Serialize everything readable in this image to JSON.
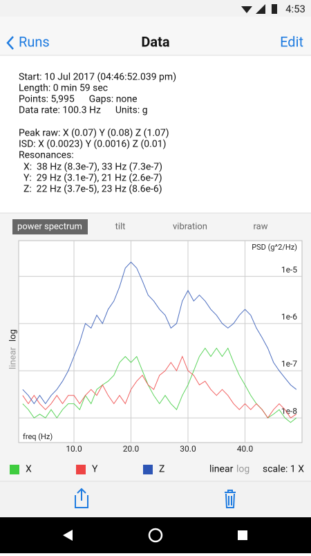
{
  "status": {
    "time": "4:53"
  },
  "nav": {
    "back": "Runs",
    "title": "Data",
    "edit": "Edit"
  },
  "info": {
    "lines": [
      "Start: 10 Jul 2017 (04:46:52.039 pm)",
      "Length: 0 min 59 sec",
      "Points: 5,995      Gaps: none",
      "Data rate: 100.3 Hz      Units: g",
      "Peak raw: X (0.07) Y (0.08) Z (1.07)",
      "ISD: X (0.0023) Y (0.0016) Z (0.01)",
      "Resonances:",
      "  X:  38 Hz (8.3e-7), 33 Hz (7.3e-7)",
      "  Y:  29 Hz (3.1e-7), 21 Hz (2.6e-7)",
      "  Z:  22 Hz (3.7e-5), 23 Hz (8.6e-6)"
    ]
  },
  "tabs": [
    "power spectrum",
    "tilt",
    "vibration",
    "raw"
  ],
  "side_scale": {
    "linear": "linear",
    "log": "log"
  },
  "controls": {
    "linear": "linear",
    "log": "log",
    "scale": "scale: 1 X"
  },
  "chart_data": {
    "type": "line",
    "ylabel": "PSD (g^2/Hz)",
    "xlabel": "freq (Hz)",
    "log_y": true,
    "grid": true,
    "x": [
      1,
      2,
      3,
      4,
      5,
      6,
      7,
      8,
      9,
      10,
      11,
      12,
      13,
      14,
      15,
      16,
      17,
      18,
      19,
      20,
      21,
      22,
      23,
      24,
      25,
      26,
      27,
      28,
      29,
      30,
      31,
      32,
      33,
      34,
      35,
      36,
      37,
      38,
      39,
      40,
      41,
      42,
      43,
      44,
      45,
      46,
      47,
      48,
      49
    ],
    "series": [
      {
        "name": "X",
        "color": "#3fcc3f",
        "values": [
          2e-08,
          1.5e-08,
          1e-08,
          1.2e-08,
          1e-08,
          1.5e-08,
          1e-08,
          1.5e-08,
          2e-08,
          2e-08,
          1.5e-08,
          3e-08,
          2e-08,
          4e-08,
          5e-08,
          6e-08,
          8e-08,
          1.5e-07,
          2e-07,
          1.5e-07,
          2e-07,
          1e-07,
          5e-08,
          3e-08,
          2e-08,
          3e-08,
          2e-08,
          1.5e-08,
          3e-08,
          5e-08,
          1e-07,
          2e-07,
          3e-07,
          2e-07,
          3e-07,
          2e-07,
          3e-07,
          1.5e-07,
          8e-08,
          5e-08,
          3e-08,
          2e-08,
          1.5e-08,
          1e-08,
          1.2e-08,
          1.5e-08,
          1e-08,
          8e-09,
          1e-08
        ]
      },
      {
        "name": "Y",
        "color": "#ee4444",
        "values": [
          3e-08,
          2e-08,
          3e-08,
          2e-08,
          1.5e-08,
          2e-08,
          3e-08,
          2e-08,
          3e-08,
          3e-08,
          2e-08,
          3e-08,
          4e-08,
          3e-08,
          5e-08,
          3e-08,
          2e-08,
          3e-08,
          2e-08,
          4e-08,
          6e-08,
          8e-08,
          5e-08,
          4e-08,
          8e-08,
          1e-07,
          1.5e-07,
          1e-07,
          2e-07,
          1e-07,
          8e-08,
          5e-08,
          6e-08,
          4e-08,
          3e-08,
          4e-08,
          3e-08,
          2e-08,
          1.5e-08,
          2e-08,
          1.5e-08,
          2e-08,
          1.5e-08,
          1e-08,
          1.5e-08,
          2e-08,
          1.5e-08,
          1e-08,
          1.2e-08
        ]
      },
      {
        "name": "Z",
        "color": "#2d55b5",
        "values": [
          4e-08,
          3e-08,
          2e-08,
          3e-08,
          2e-08,
          3e-08,
          4e-08,
          6e-08,
          1e-07,
          2e-07,
          4e-07,
          1e-06,
          8e-07,
          1.5e-06,
          1e-06,
          2e-06,
          3e-06,
          6e-06,
          1.5e-05,
          2e-05,
          1.5e-05,
          8e-06,
          4e-06,
          3e-06,
          2e-06,
          1.5e-06,
          8e-07,
          1e-06,
          3e-06,
          5e-06,
          3e-06,
          4e-06,
          3e-06,
          2e-06,
          1.5e-06,
          1e-06,
          8e-07,
          1e-06,
          1.5e-06,
          2e-06,
          1.5e-06,
          8e-07,
          5e-07,
          3e-07,
          1.5e-07,
          1e-07,
          7e-08,
          5e-08,
          4e-08
        ]
      }
    ],
    "xlim": [
      0.3,
      50
    ],
    "ylim": [
      3e-09,
      5.7e-05
    ],
    "xticks": [
      {
        "value": 10,
        "label": "10.0"
      },
      {
        "value": 20,
        "label": "20.0"
      },
      {
        "value": 30,
        "label": "30.0"
      },
      {
        "value": 40,
        "label": "40.0"
      }
    ],
    "yticks": [
      {
        "value": 1e-05,
        "label": "1e-5"
      },
      {
        "value": 1e-06,
        "label": "1e-6"
      },
      {
        "value": 1e-07,
        "label": "1e-7"
      },
      {
        "value": 1e-08,
        "label": "1e-8"
      }
    ]
  }
}
